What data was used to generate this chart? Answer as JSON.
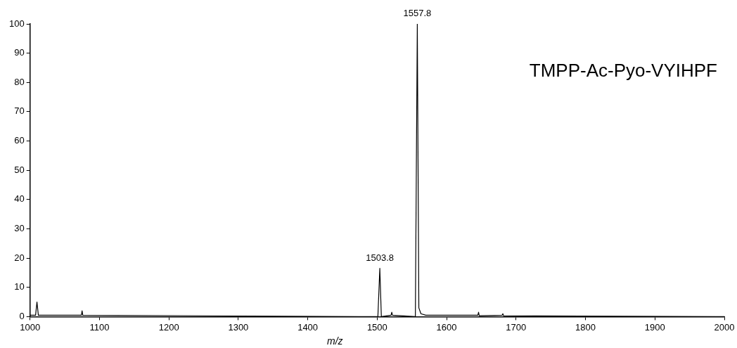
{
  "chart_data": {
    "type": "line",
    "title": "TMPP-Ac-Pyo-VYIHPF",
    "xlabel": "m/z",
    "x": [
      1000,
      1008,
      1010,
      1012,
      1074,
      1075,
      1076,
      1501,
      1503.8,
      1506,
      1520,
      1521,
      1522,
      1555,
      1557.8,
      1560,
      1563,
      1570,
      1645,
      1646,
      1647,
      1680,
      1681,
      1682,
      2000
    ],
    "series": [
      {
        "color": "#000000",
        "values": [
          0.5,
          0.5,
          5,
          0.5,
          0.5,
          2,
          0.5,
          0,
          16.5,
          0,
          0.5,
          1.5,
          0.5,
          0,
          100,
          3,
          1,
          0.5,
          0.5,
          1.5,
          0.3,
          0.5,
          1,
          0.3,
          0
        ]
      }
    ],
    "xlim": [
      1000,
      2000
    ],
    "xticks": [
      1000,
      1100,
      1200,
      1300,
      1400,
      1500,
      1600,
      1700,
      1800,
      1900,
      2000
    ],
    "ylim": [
      0,
      100
    ],
    "yticks": [
      0,
      10,
      20,
      30,
      40,
      50,
      60,
      70,
      80,
      90,
      100
    ],
    "annotations": [
      {
        "text": "1557.8",
        "x": 1557.8,
        "y": 100
      },
      {
        "text": "1503.8",
        "x": 1503.8,
        "y": 16.5
      }
    ],
    "grid": false,
    "legend": false,
    "marker": "none",
    "line_style": "solid"
  }
}
